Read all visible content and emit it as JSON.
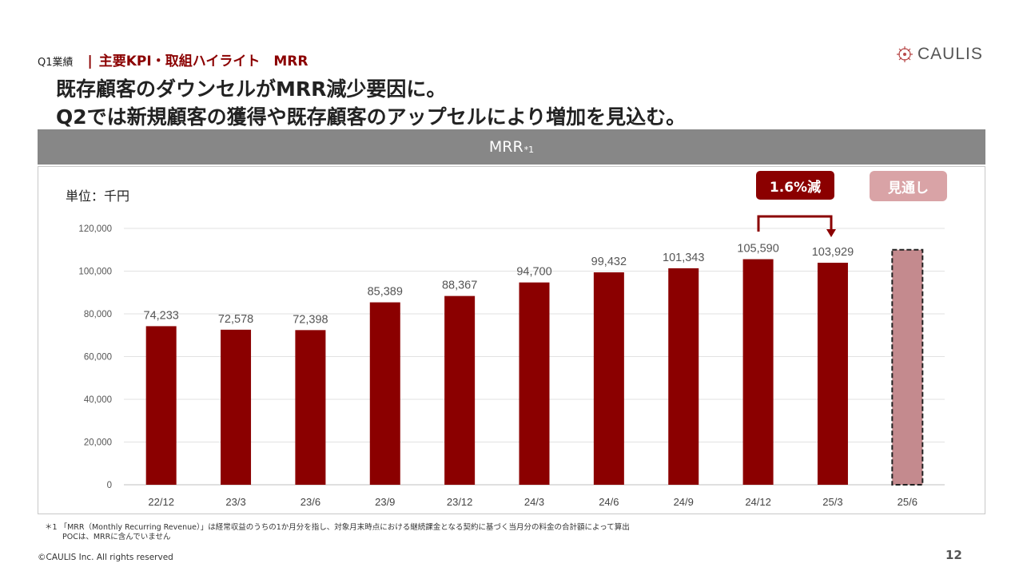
{
  "header": {
    "breadcrumb_prefix": "Q1業績",
    "breadcrumb_separator": "|",
    "breadcrumb_title": "主要KPI・取組ハイライト　MRR",
    "logo_text": "CAULIS"
  },
  "headline": {
    "line1": "既存顧客のダウンセルがMRR減少要因に。",
    "line2": "Q2では新規顧客の獲得や既存顧客のアップセルにより増加を見込む。"
  },
  "section_bar": {
    "title": "MRR",
    "note_mark": "*1"
  },
  "chart_annotations": {
    "unit_label": "単位：千円",
    "change_label": "1.6%減",
    "forecast_label": "見通し"
  },
  "chart_data": {
    "type": "bar",
    "categories": [
      "22/12",
      "23/3",
      "23/6",
      "23/9",
      "23/12",
      "24/3",
      "24/6",
      "24/9",
      "24/12",
      "25/3",
      "25/6"
    ],
    "values": [
      74233,
      72578,
      72398,
      85389,
      88367,
      94700,
      99432,
      101343,
      105590,
      103929,
      110000
    ],
    "data_labels": [
      "74,233",
      "72,578",
      "72,398",
      "85,389",
      "88,367",
      "94,700",
      "99,432",
      "101,343",
      "105,590",
      "103,929",
      ""
    ],
    "forecast_index": 10,
    "y_ticks": [
      0,
      20000,
      40000,
      60000,
      80000,
      100000,
      120000
    ],
    "y_tick_labels": [
      "0",
      "20,000",
      "40,000",
      "60,000",
      "80,000",
      "100,000",
      "120,000"
    ],
    "ylim": [
      0,
      120000
    ],
    "grid": true,
    "bar_color": "#8b0000",
    "forecast_color": "#c48a8e",
    "title": "",
    "xlabel": "",
    "ylabel": ""
  },
  "footer": {
    "footnote_line1": "＊1 「MRR（Monthly Recurring Revenue）」は経常収益のうちの1か月分を指し、対象月末時点における継続課金となる契約に基づく当月分の料金の合計額によって算出",
    "footnote_line2": "POCは、MRRに含んでいません",
    "copyright": "©CAULIS Inc. All rights reserved",
    "page_number": "12"
  }
}
